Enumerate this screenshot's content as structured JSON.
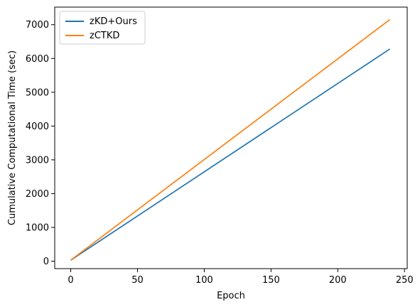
{
  "chart_data": {
    "type": "line",
    "xlabel": "Epoch",
    "ylabel": "Cumulative Computational Time (sec)",
    "xlim": [
      -12,
      252
    ],
    "ylim": [
      -220,
      7520
    ],
    "xticks": [
      0,
      50,
      100,
      150,
      200,
      250
    ],
    "yticks": [
      0,
      1000,
      2000,
      3000,
      4000,
      5000,
      6000,
      7000
    ],
    "grid": false,
    "legend_position": "top-left",
    "series": [
      {
        "name": "zKD+Ours",
        "color": "#1f77b4",
        "x": [
          0,
          239
        ],
        "y": [
          30,
          6280
        ]
      },
      {
        "name": "zCTKD",
        "color": "#ff7f0e",
        "x": [
          0,
          239
        ],
        "y": [
          30,
          7150
        ]
      }
    ]
  }
}
